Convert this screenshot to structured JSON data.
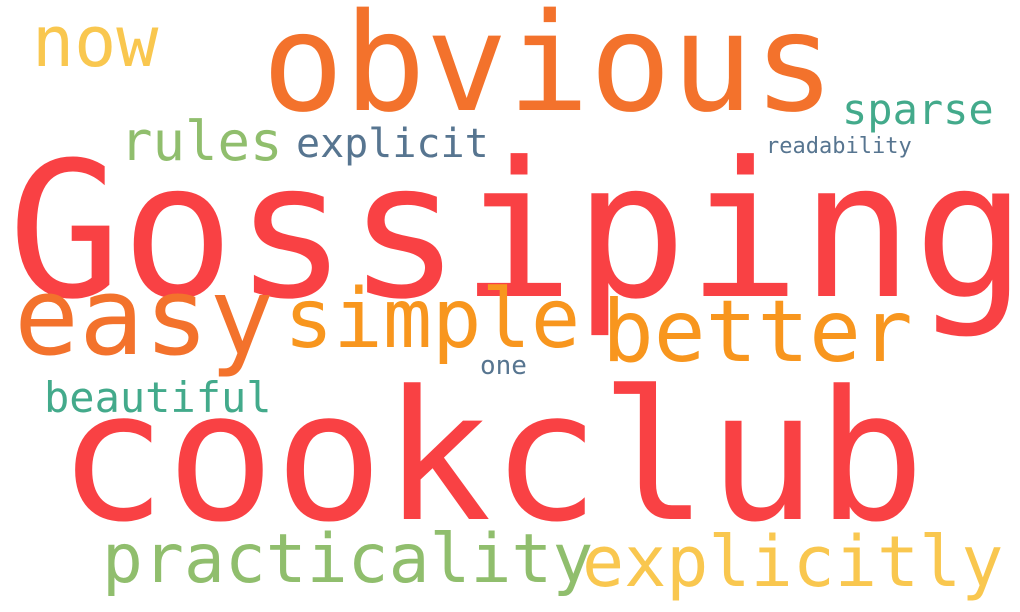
{
  "words": [
    {
      "id": "gossiping",
      "text": "Gossiping",
      "color": "#f94144"
    },
    {
      "id": "cookclub",
      "text": "cookclub",
      "color": "#f94144"
    },
    {
      "id": "obvious",
      "text": "obvious",
      "color": "#f3722c"
    },
    {
      "id": "easy",
      "text": "easy",
      "color": "#f3722c"
    },
    {
      "id": "better",
      "text": "better",
      "color": "#f8961e"
    },
    {
      "id": "simple",
      "text": "simple",
      "color": "#f8961e"
    },
    {
      "id": "explicitly",
      "text": "explicitly",
      "color": "#f9c74f"
    },
    {
      "id": "practicality",
      "text": "practicality",
      "color": "#90be6d"
    },
    {
      "id": "now",
      "text": "now",
      "color": "#f9c74f"
    },
    {
      "id": "rules",
      "text": "rules",
      "color": "#90be6d"
    },
    {
      "id": "sparse",
      "text": "sparse",
      "color": "#43aa8b"
    },
    {
      "id": "explicit",
      "text": "explicit",
      "color": "#577590"
    },
    {
      "id": "beautiful",
      "text": "beautiful",
      "color": "#43aa8b"
    },
    {
      "id": "readability",
      "text": "readability",
      "color": "#577590"
    },
    {
      "id": "one",
      "text": "one",
      "color": "#577590"
    }
  ]
}
